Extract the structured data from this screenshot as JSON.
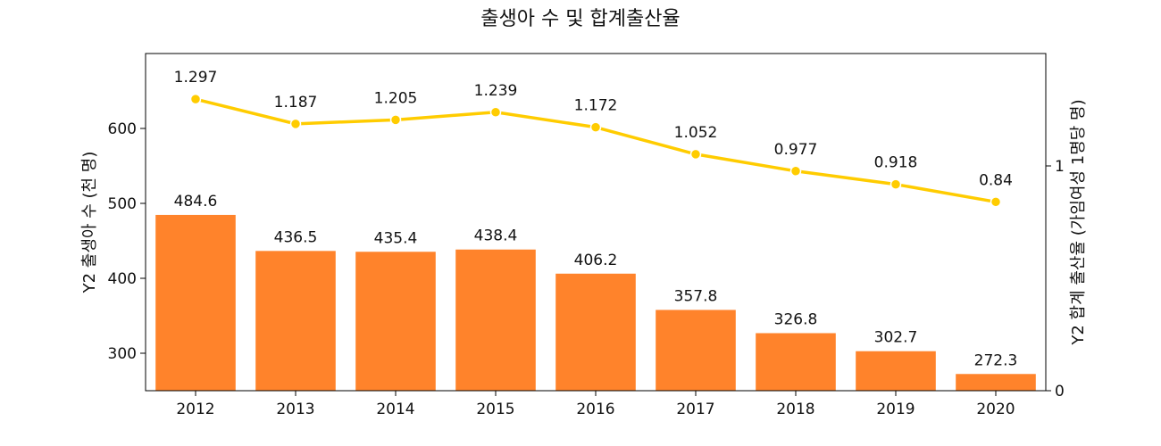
{
  "chart_data": {
    "type": "bar+line",
    "title": "출생아 수 및 합계출산율",
    "categories": [
      "2012",
      "2013",
      "2014",
      "2015",
      "2016",
      "2017",
      "2018",
      "2019",
      "2020"
    ],
    "series": [
      {
        "type": "bar",
        "axis": "left",
        "color": "#ff832b",
        "values": [
          484.6,
          436.5,
          435.4,
          438.4,
          406.2,
          357.8,
          326.8,
          302.7,
          272.3
        ]
      },
      {
        "type": "line",
        "axis": "right",
        "color": "#ffcc00",
        "values": [
          1.297,
          1.187,
          1.205,
          1.239,
          1.172,
          1.052,
          0.977,
          0.918,
          0.84
        ]
      }
    ],
    "bar_value_labels": [
      "484.6",
      "436.5",
      "435.4",
      "438.4",
      "406.2",
      "357.8",
      "326.8",
      "302.7",
      "272.3"
    ],
    "line_value_labels": [
      "1.297",
      "1.187",
      "1.205",
      "1.239",
      "1.172",
      "1.052",
      "0.977",
      "0.918",
      "0.84"
    ],
    "ylabel": "Y2 출생아 수 (천 명)",
    "y2label": "Y2 합계 출산율 (가임여성 1명당 명)",
    "ylim": [
      250,
      700
    ],
    "yticks": [
      "300",
      "400",
      "500",
      "600"
    ],
    "y2lim": [
      0,
      1.5
    ],
    "y2ticks": [
      "0",
      "1"
    ],
    "grid": false,
    "legend": "none"
  }
}
